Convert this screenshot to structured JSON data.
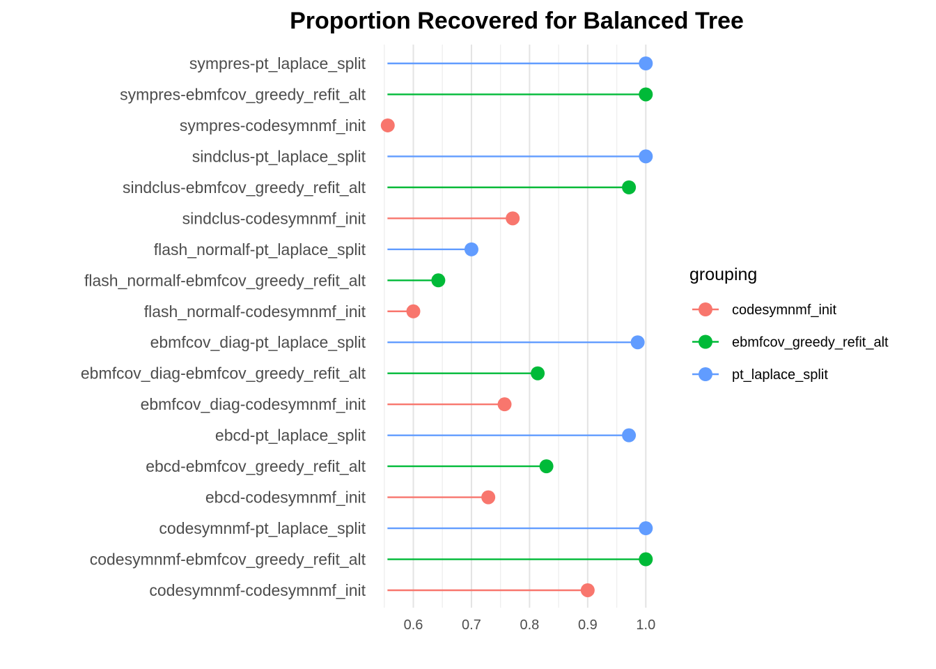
{
  "chart_data": {
    "type": "lollipop",
    "title": "Proportion Recovered for Balanced Tree",
    "xlabel": "",
    "ylabel": "",
    "xlim": [
      0.5555,
      1.0
    ],
    "xticks": [
      "0.6",
      "0.7",
      "0.8",
      "0.9",
      "1.0"
    ],
    "xtick_values": [
      0.6,
      0.7,
      0.8,
      0.9,
      1.0
    ],
    "grid": true,
    "legend": {
      "title": "grouping",
      "position": "right",
      "entries": [
        "codesymnmf_init",
        "ebmfcov_greedy_refit_alt",
        "pt_laplace_split"
      ]
    },
    "colors": {
      "codesymnmf_init": "#F8766D",
      "ebmfcov_greedy_refit_alt": "#00BA38",
      "pt_laplace_split": "#619CFF"
    },
    "points": [
      {
        "label": "sympres-pt_laplace_split",
        "group": "pt_laplace_split",
        "value": 1.0
      },
      {
        "label": "sympres-ebmfcov_greedy_refit_alt",
        "group": "ebmfcov_greedy_refit_alt",
        "value": 1.0
      },
      {
        "label": "sympres-codesymnmf_init",
        "group": "codesymnmf_init",
        "value": 0.556
      },
      {
        "label": "sindclus-pt_laplace_split",
        "group": "pt_laplace_split",
        "value": 1.0
      },
      {
        "label": "sindclus-ebmfcov_greedy_refit_alt",
        "group": "ebmfcov_greedy_refit_alt",
        "value": 0.971
      },
      {
        "label": "sindclus-codesymnmf_init",
        "group": "codesymnmf_init",
        "value": 0.771
      },
      {
        "label": "flash_normalf-pt_laplace_split",
        "group": "pt_laplace_split",
        "value": 0.7
      },
      {
        "label": "flash_normalf-ebmfcov_greedy_refit_alt",
        "group": "ebmfcov_greedy_refit_alt",
        "value": 0.643
      },
      {
        "label": "flash_normalf-codesymnmf_init",
        "group": "codesymnmf_init",
        "value": 0.6
      },
      {
        "label": "ebmfcov_diag-pt_laplace_split",
        "group": "pt_laplace_split",
        "value": 0.986
      },
      {
        "label": "ebmfcov_diag-ebmfcov_greedy_refit_alt",
        "group": "ebmfcov_greedy_refit_alt",
        "value": 0.814
      },
      {
        "label": "ebmfcov_diag-codesymnmf_init",
        "group": "codesymnmf_init",
        "value": 0.757
      },
      {
        "label": "ebcd-pt_laplace_split",
        "group": "pt_laplace_split",
        "value": 0.971
      },
      {
        "label": "ebcd-ebmfcov_greedy_refit_alt",
        "group": "ebmfcov_greedy_refit_alt",
        "value": 0.829
      },
      {
        "label": "ebcd-codesymnmf_init",
        "group": "codesymnmf_init",
        "value": 0.729
      },
      {
        "label": "codesymnmf-pt_laplace_split",
        "group": "pt_laplace_split",
        "value": 1.0
      },
      {
        "label": "codesymnmf-ebmfcov_greedy_refit_alt",
        "group": "ebmfcov_greedy_refit_alt",
        "value": 1.0
      },
      {
        "label": "codesymnmf-codesymnmf_init",
        "group": "codesymnmf_init",
        "value": 0.9
      }
    ]
  }
}
